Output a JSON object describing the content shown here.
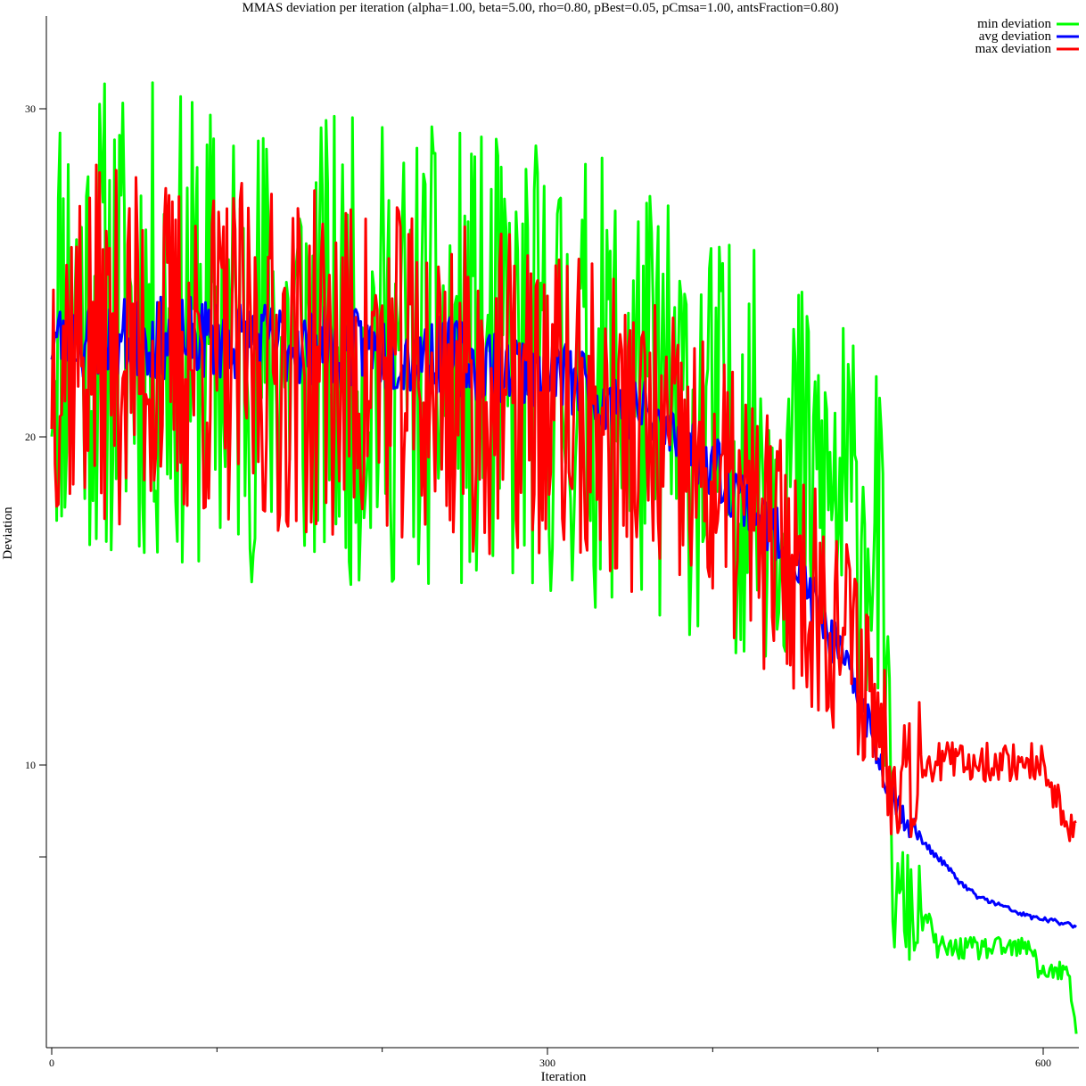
{
  "chart_data": {
    "type": "line",
    "title": "MMAS deviation per iteration (alpha=1.00, beta=5.00, rho=0.80, pBest=0.05, pCmsa=1.00, antsFraction=0.80)",
    "xlabel": "Iteration",
    "ylabel": "Deviation",
    "xlim": [
      0,
      620
    ],
    "ylim": [
      7.2,
      35
    ],
    "x_ticks": [
      0,
      300,
      600
    ],
    "x_minor_ticks": [
      100,
      200,
      400,
      500
    ],
    "y_ticks": [
      10,
      20,
      30
    ],
    "y_minor_ticks": [
      7.2
    ],
    "legend_position": "top-right",
    "grid": false,
    "series": [
      {
        "name": "min deviation",
        "color": "#00ff00",
        "noise": 0.32,
        "seed": 11,
        "points": [
          [
            0,
            24
          ],
          [
            100,
            23
          ],
          [
            200,
            22.5
          ],
          [
            300,
            22
          ],
          [
            350,
            21.5
          ],
          [
            400,
            20
          ],
          [
            450,
            19
          ],
          [
            480,
            18
          ],
          [
            500,
            17
          ],
          [
            505,
            13
          ],
          [
            510,
            5.5
          ],
          [
            515,
            5.8
          ],
          [
            520,
            5.5
          ],
          [
            525,
            5.3
          ],
          [
            530,
            5.3
          ],
          [
            535,
            4.5
          ],
          [
            540,
            4.4
          ],
          [
            560,
            4.4
          ],
          [
            580,
            4.4
          ],
          [
            595,
            4.4
          ],
          [
            597,
            3.7
          ],
          [
            600,
            3.7
          ],
          [
            615,
            3.7
          ],
          [
            617,
            2.9
          ],
          [
            620,
            1.9
          ]
        ]
      },
      {
        "name": "avg deviation",
        "color": "#0000ff",
        "noise": 0.055,
        "seed": 23,
        "points": [
          [
            0,
            23
          ],
          [
            100,
            23
          ],
          [
            200,
            22.6
          ],
          [
            250,
            22.4
          ],
          [
            300,
            22
          ],
          [
            350,
            21
          ],
          [
            400,
            19.2
          ],
          [
            430,
            17.5
          ],
          [
            450,
            16.2
          ],
          [
            470,
            14
          ],
          [
            480,
            13
          ],
          [
            490,
            12
          ],
          [
            500,
            10.3
          ],
          [
            510,
            9
          ],
          [
            520,
            8.1
          ],
          [
            530,
            7.5
          ],
          [
            540,
            7
          ],
          [
            550,
            6.4
          ],
          [
            560,
            6
          ],
          [
            570,
            5.8
          ],
          [
            580,
            5.6
          ],
          [
            590,
            5.4
          ],
          [
            600,
            5.3
          ],
          [
            610,
            5.2
          ],
          [
            620,
            5.1
          ]
        ]
      },
      {
        "name": "max deviation",
        "color": "#ff0000",
        "noise": 0.24,
        "seed": 37,
        "points": [
          [
            0,
            23
          ],
          [
            100,
            22.5
          ],
          [
            200,
            22
          ],
          [
            300,
            21
          ],
          [
            350,
            20
          ],
          [
            400,
            18.5
          ],
          [
            450,
            16
          ],
          [
            480,
            14
          ],
          [
            495,
            12.5
          ],
          [
            500,
            11.5
          ],
          [
            505,
            10.5
          ],
          [
            510,
            10.2
          ],
          [
            520,
            10.1
          ],
          [
            560,
            10.1
          ],
          [
            600,
            10.1
          ],
          [
            602,
            9.2
          ],
          [
            608,
            9.2
          ],
          [
            610,
            8.8
          ],
          [
            613,
            8.0
          ],
          [
            620,
            8.0
          ]
        ]
      }
    ]
  }
}
